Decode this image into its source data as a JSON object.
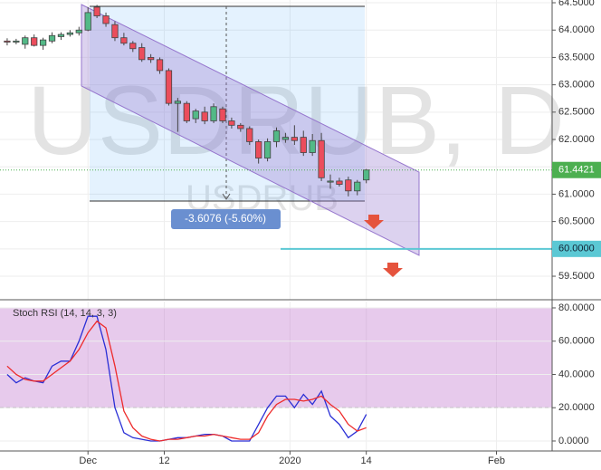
{
  "watermark": {
    "symbol": "USDRUB, D",
    "sub": "USDRUB"
  },
  "chart_data": [
    {
      "type": "candlestick",
      "open": [
        63.8,
        63.78,
        63.74,
        63.86,
        63.72,
        63.8,
        63.88,
        63.92,
        63.95,
        64.0,
        64.42,
        64.26,
        64.1,
        63.86,
        63.76,
        63.68,
        63.5,
        63.46,
        63.26,
        62.66,
        62.66,
        62.38,
        62.5,
        62.34,
        62.56,
        62.34,
        62.26,
        62.2,
        61.96,
        61.66,
        61.96,
        62.0,
        62.04,
        62.04,
        61.76,
        61.98,
        61.22,
        61.24,
        61.26,
        61.06,
        61.26
      ],
      "high": [
        63.85,
        63.84,
        63.9,
        63.92,
        63.86,
        63.96,
        63.96,
        64.0,
        64.06,
        64.42,
        64.46,
        64.32,
        64.16,
        63.95,
        63.8,
        63.76,
        63.56,
        63.5,
        63.3,
        62.76,
        62.7,
        62.56,
        62.6,
        62.66,
        62.6,
        62.4,
        62.3,
        62.24,
        62.0,
        62.02,
        62.22,
        62.12,
        62.26,
        62.16,
        62.1,
        62.12,
        61.36,
        61.3,
        61.32,
        61.26,
        61.46
      ],
      "low": [
        63.72,
        63.74,
        63.66,
        63.7,
        63.64,
        63.76,
        63.82,
        63.88,
        63.9,
        63.98,
        64.22,
        64.06,
        63.8,
        63.72,
        63.6,
        63.42,
        63.4,
        63.2,
        62.62,
        62.14,
        62.3,
        62.3,
        62.28,
        62.3,
        62.3,
        62.2,
        62.14,
        61.9,
        61.56,
        61.6,
        61.86,
        61.94,
        61.9,
        61.7,
        61.7,
        61.24,
        61.1,
        61.14,
        60.96,
        60.98,
        61.2
      ],
      "close": [
        63.78,
        63.8,
        63.86,
        63.72,
        63.82,
        63.9,
        63.92,
        63.95,
        64.0,
        64.32,
        64.26,
        64.12,
        63.86,
        63.76,
        63.66,
        63.46,
        63.46,
        63.26,
        62.66,
        62.7,
        62.34,
        62.52,
        62.34,
        62.6,
        62.34,
        62.26,
        62.2,
        61.96,
        61.66,
        61.96,
        62.16,
        62.04,
        61.98,
        61.76,
        61.98,
        61.3,
        61.24,
        61.18,
        61.06,
        61.22,
        61.4421
      ],
      "up_color": "#53b987",
      "down_color": "#eb4d5c",
      "xlim": [
        -0.8,
        60.7
      ],
      "ylim": [
        59.07,
        64.55
      ],
      "yticks": [
        {
          "value": 64.5,
          "label": "64.5000"
        },
        {
          "value": 64,
          "label": "64.0000"
        },
        {
          "value": 63.5,
          "label": "63.5000"
        },
        {
          "value": 63,
          "label": "63.0000"
        },
        {
          "value": 62.5,
          "label": "62.5000"
        },
        {
          "value": 62,
          "label": "62.0000"
        },
        {
          "value": 61.5,
          "label": "61.5000"
        },
        {
          "value": 61,
          "label": "61.0000"
        },
        {
          "value": 60.5,
          "label": "60.5000"
        },
        {
          "value": 60,
          "label": "60.0000"
        },
        {
          "value": 59.5,
          "label": "59.5000"
        }
      ],
      "last_price": 61.4421,
      "last_price_color": "#4caf50",
      "hline": {
        "value": 60,
        "label": "60.0000",
        "color": "#5bc8d4"
      },
      "measure": "-3.6076 (-5.60%)",
      "grid": true
    },
    {
      "type": "line",
      "title": "Stoch RSI (14, 14, 3, 3)",
      "series": [
        {
          "color": "#2a2fd6",
          "values": [
            40,
            35,
            38,
            36,
            35,
            45,
            48,
            48,
            60,
            75,
            75,
            55,
            20,
            5,
            2,
            1,
            0,
            0,
            1,
            2,
            2,
            3,
            4,
            4,
            3,
            0,
            0,
            0,
            10,
            20,
            27,
            27,
            20,
            28,
            22,
            30,
            15,
            10,
            2,
            6,
            16
          ]
        },
        {
          "color": "#ee2b2b",
          "values": [
            45,
            40,
            37,
            36,
            36,
            40,
            44,
            48,
            55,
            65,
            72,
            68,
            45,
            18,
            8,
            3,
            1,
            0,
            1,
            1,
            2,
            3,
            3,
            4,
            3,
            2,
            1,
            1,
            5,
            15,
            22,
            25,
            25,
            24,
            25,
            27,
            22,
            18,
            10,
            6,
            8
          ]
        }
      ],
      "band": [
        20,
        80
      ],
      "band_color": "#ba68c8",
      "xlim": [
        -0.8,
        60.7
      ],
      "xticks": [
        {
          "value": 9,
          "label": "Dec"
        },
        {
          "value": 17.5,
          "label": "12"
        },
        {
          "value": 31.5,
          "label": "2020"
        },
        {
          "value": 40,
          "label": "14"
        },
        {
          "value": 54.5,
          "label": "Feb"
        }
      ],
      "ylim": [
        -6,
        83.8
      ],
      "yticks": [
        {
          "value": 80,
          "label": "80.0000"
        },
        {
          "value": 60,
          "label": "60.0000"
        },
        {
          "value": 40,
          "label": "40.0000"
        },
        {
          "value": 20,
          "label": "20.0000"
        },
        {
          "value": 0,
          "label": "0.0000"
        }
      ],
      "grid": true
    }
  ]
}
